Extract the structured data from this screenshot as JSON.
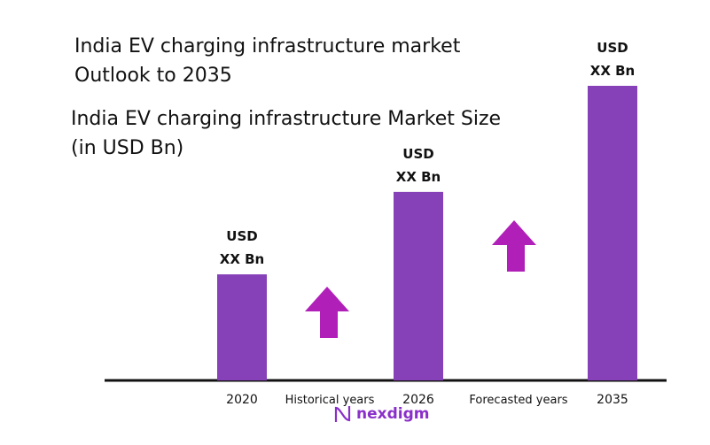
{
  "chart_data": {
    "type": "bar",
    "title": [
      "India EV charging infrastructure market",
      "Outlook to 2035"
    ],
    "subtitle": [
      "India EV charging infrastructure Market Size",
      "(in USD Bn)"
    ],
    "categories": [
      "2020",
      "2026",
      "2035"
    ],
    "values_relative": [
      0.36,
      0.64,
      1.0
    ],
    "data_labels": [
      [
        "USD",
        "XX Bn"
      ],
      [
        "USD",
        "XX Bn"
      ],
      [
        "USD",
        "XX Bn"
      ]
    ],
    "annotations": [
      "Historical years",
      "Forecasted years"
    ],
    "arrows": [
      "up-arrow-icon",
      "up-arrow-icon"
    ],
    "grid": false,
    "colors": {
      "bar": "#8640B8",
      "arrow": "#B020B8",
      "axis": "#111111"
    }
  },
  "logo": {
    "text": "nexdigm"
  }
}
